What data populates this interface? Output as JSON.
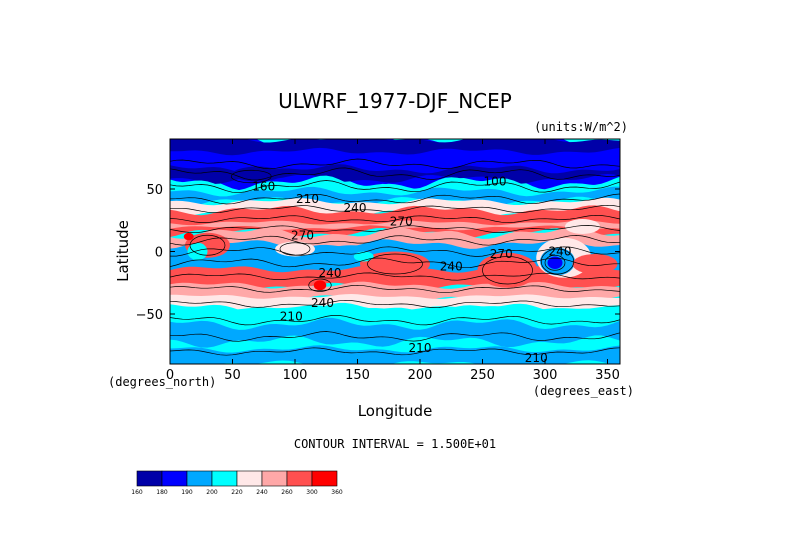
{
  "chart_data": {
    "type": "heatmap",
    "title": "ULWRF_1977-DJF_NCEP",
    "units_label": "(units:W/m^2)",
    "xlabel": "Longitude",
    "ylabel": "Latitude",
    "x_unit_label": "(degrees_east)",
    "y_unit_label": "(degrees_north)",
    "xlim": [
      0,
      360
    ],
    "ylim": [
      -90,
      90
    ],
    "x_ticks": [
      0,
      50,
      100,
      150,
      200,
      250,
      300,
      350
    ],
    "y_ticks": [
      50,
      0,
      -50
    ],
    "x_tick_labels": [
      "0",
      "50",
      "100",
      "150",
      "200",
      "250",
      "300",
      "350"
    ],
    "y_tick_labels": [
      "50",
      "0",
      "−50"
    ],
    "contour_interval_text": "CONTOUR INTERVAL = 1.500E+01",
    "colorbar": {
      "levels": [
        "160",
        "180",
        "190",
        "200",
        "220",
        "240",
        "260",
        "300",
        "360"
      ],
      "colors": [
        "#0000a8",
        "#0000ff",
        "#00a8ff",
        "#00ffff",
        "#ffe8e8",
        "#ffa8a8",
        "#ff5050",
        "#ff0000"
      ]
    },
    "contour_labels": [
      {
        "text": "160",
        "lon": 75,
        "lat": 52
      },
      {
        "text": "100",
        "lon": 260,
        "lat": 56
      },
      {
        "text": "210",
        "lon": 110,
        "lat": 42
      },
      {
        "text": "240",
        "lon": 148,
        "lat": 35
      },
      {
        "text": "270",
        "lon": 185,
        "lat": 24
      },
      {
        "text": "270",
        "lon": 106,
        "lat": 13
      },
      {
        "text": "240",
        "lon": 225,
        "lat": -12
      },
      {
        "text": "270",
        "lon": 265,
        "lat": -2
      },
      {
        "text": "240",
        "lon": 312,
        "lat": 0
      },
      {
        "text": "240",
        "lon": 128,
        "lat": -17
      },
      {
        "text": "240",
        "lon": 122,
        "lat": -41
      },
      {
        "text": "210",
        "lon": 97,
        "lat": -52
      },
      {
        "text": "210",
        "lon": 200,
        "lat": -77
      },
      {
        "text": "210",
        "lon": 293,
        "lat": -85
      }
    ]
  }
}
